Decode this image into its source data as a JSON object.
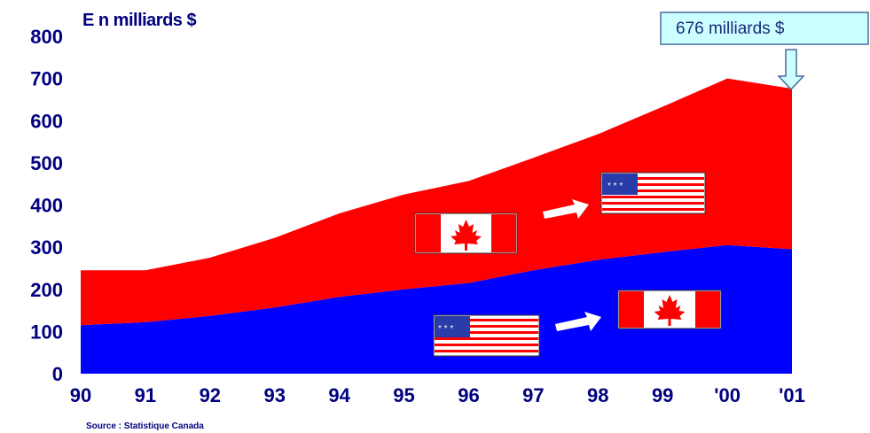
{
  "chart_data": {
    "type": "area",
    "stacked": true,
    "unit_label": "E n milliards $",
    "source": "Source : Statistique Canada",
    "categories": [
      "90",
      "91",
      "92",
      "93",
      "94",
      "95",
      "96",
      "97",
      "98",
      "99",
      "'00",
      "'01"
    ],
    "ylim": [
      0,
      800
    ],
    "yticks": [
      0,
      100,
      200,
      300,
      400,
      500,
      600,
      700,
      800
    ],
    "series": [
      {
        "color": "#0000ff",
        "values": [
          115,
          122,
          137,
          157,
          182,
          200,
          215,
          245,
          270,
          288,
          305,
          295
        ]
      },
      {
        "color": "#ff0000",
        "values": [
          130,
          123,
          138,
          165,
          198,
          225,
          242,
          267,
          298,
          345,
          395,
          381
        ]
      }
    ],
    "annotation": {
      "text": "676 milliards $",
      "category": "'01",
      "value": 676
    },
    "flags": [
      {
        "id": "canada-to-us",
        "from": "canada",
        "to": "united-states"
      },
      {
        "id": "us-to-canada",
        "from": "united-states",
        "to": "canada"
      }
    ],
    "colors": {
      "axis_text": "#000080",
      "callout_fill": "#ccffff",
      "arrow": "#ffffff"
    }
  }
}
